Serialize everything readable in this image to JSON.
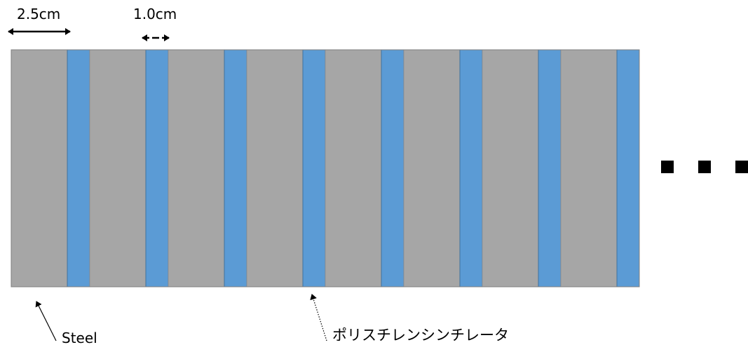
{
  "dimensions": {
    "steel_thickness": "2.5cm",
    "scintillator_thickness": "1.0cm"
  },
  "labels": {
    "steel": "Steel",
    "scintillator": "ポリスチレンシンチレータ"
  },
  "continuation_marks": 3,
  "layers": [
    "steel",
    "scintillator",
    "steel",
    "scintillator",
    "steel",
    "scintillator",
    "steel",
    "scintillator",
    "steel",
    "scintillator",
    "steel",
    "scintillator",
    "steel",
    "scintillator",
    "steel",
    "scintillator"
  ],
  "colors": {
    "steel": "#a6a6a6",
    "scintillator": "#5b9bd5",
    "scintillator_border": "#41719c",
    "outline": "#7f7f7f"
  }
}
